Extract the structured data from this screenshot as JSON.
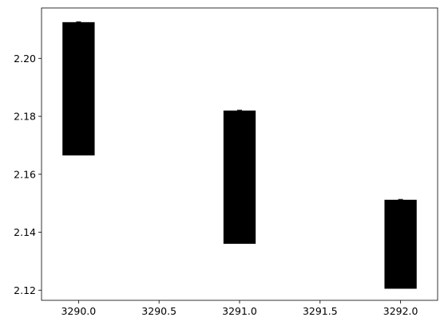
{
  "chart_data": {
    "type": "bar",
    "title": "",
    "xlabel": "",
    "ylabel": "",
    "x": [
      3290.0,
      3291.0,
      3292.0
    ],
    "bars": [
      {
        "x": 3290.0,
        "bottom": 2.1665,
        "top": 2.2125
      },
      {
        "x": 3291.0,
        "bottom": 2.136,
        "top": 2.182
      },
      {
        "x": 3292.0,
        "bottom": 2.1205,
        "top": 2.1512
      }
    ],
    "bar_width": 0.2,
    "xlim": [
      3289.77,
      3292.23
    ],
    "ylim": [
      2.1165,
      2.2174
    ],
    "xticks": [
      3290.0,
      3290.5,
      3291.0,
      3291.5,
      3292.0
    ],
    "xtick_labels": [
      "3290.0",
      "3290.5",
      "3291.0",
      "3291.5",
      "3292.0"
    ],
    "yticks": [
      2.12,
      2.14,
      2.16,
      2.18,
      2.2
    ],
    "ytick_labels": [
      "2.12",
      "2.14",
      "2.16",
      "2.18",
      "2.20"
    ],
    "grid": false,
    "colors": {
      "bars": "#000000",
      "axes": "#000000",
      "background": "#ffffff"
    }
  }
}
